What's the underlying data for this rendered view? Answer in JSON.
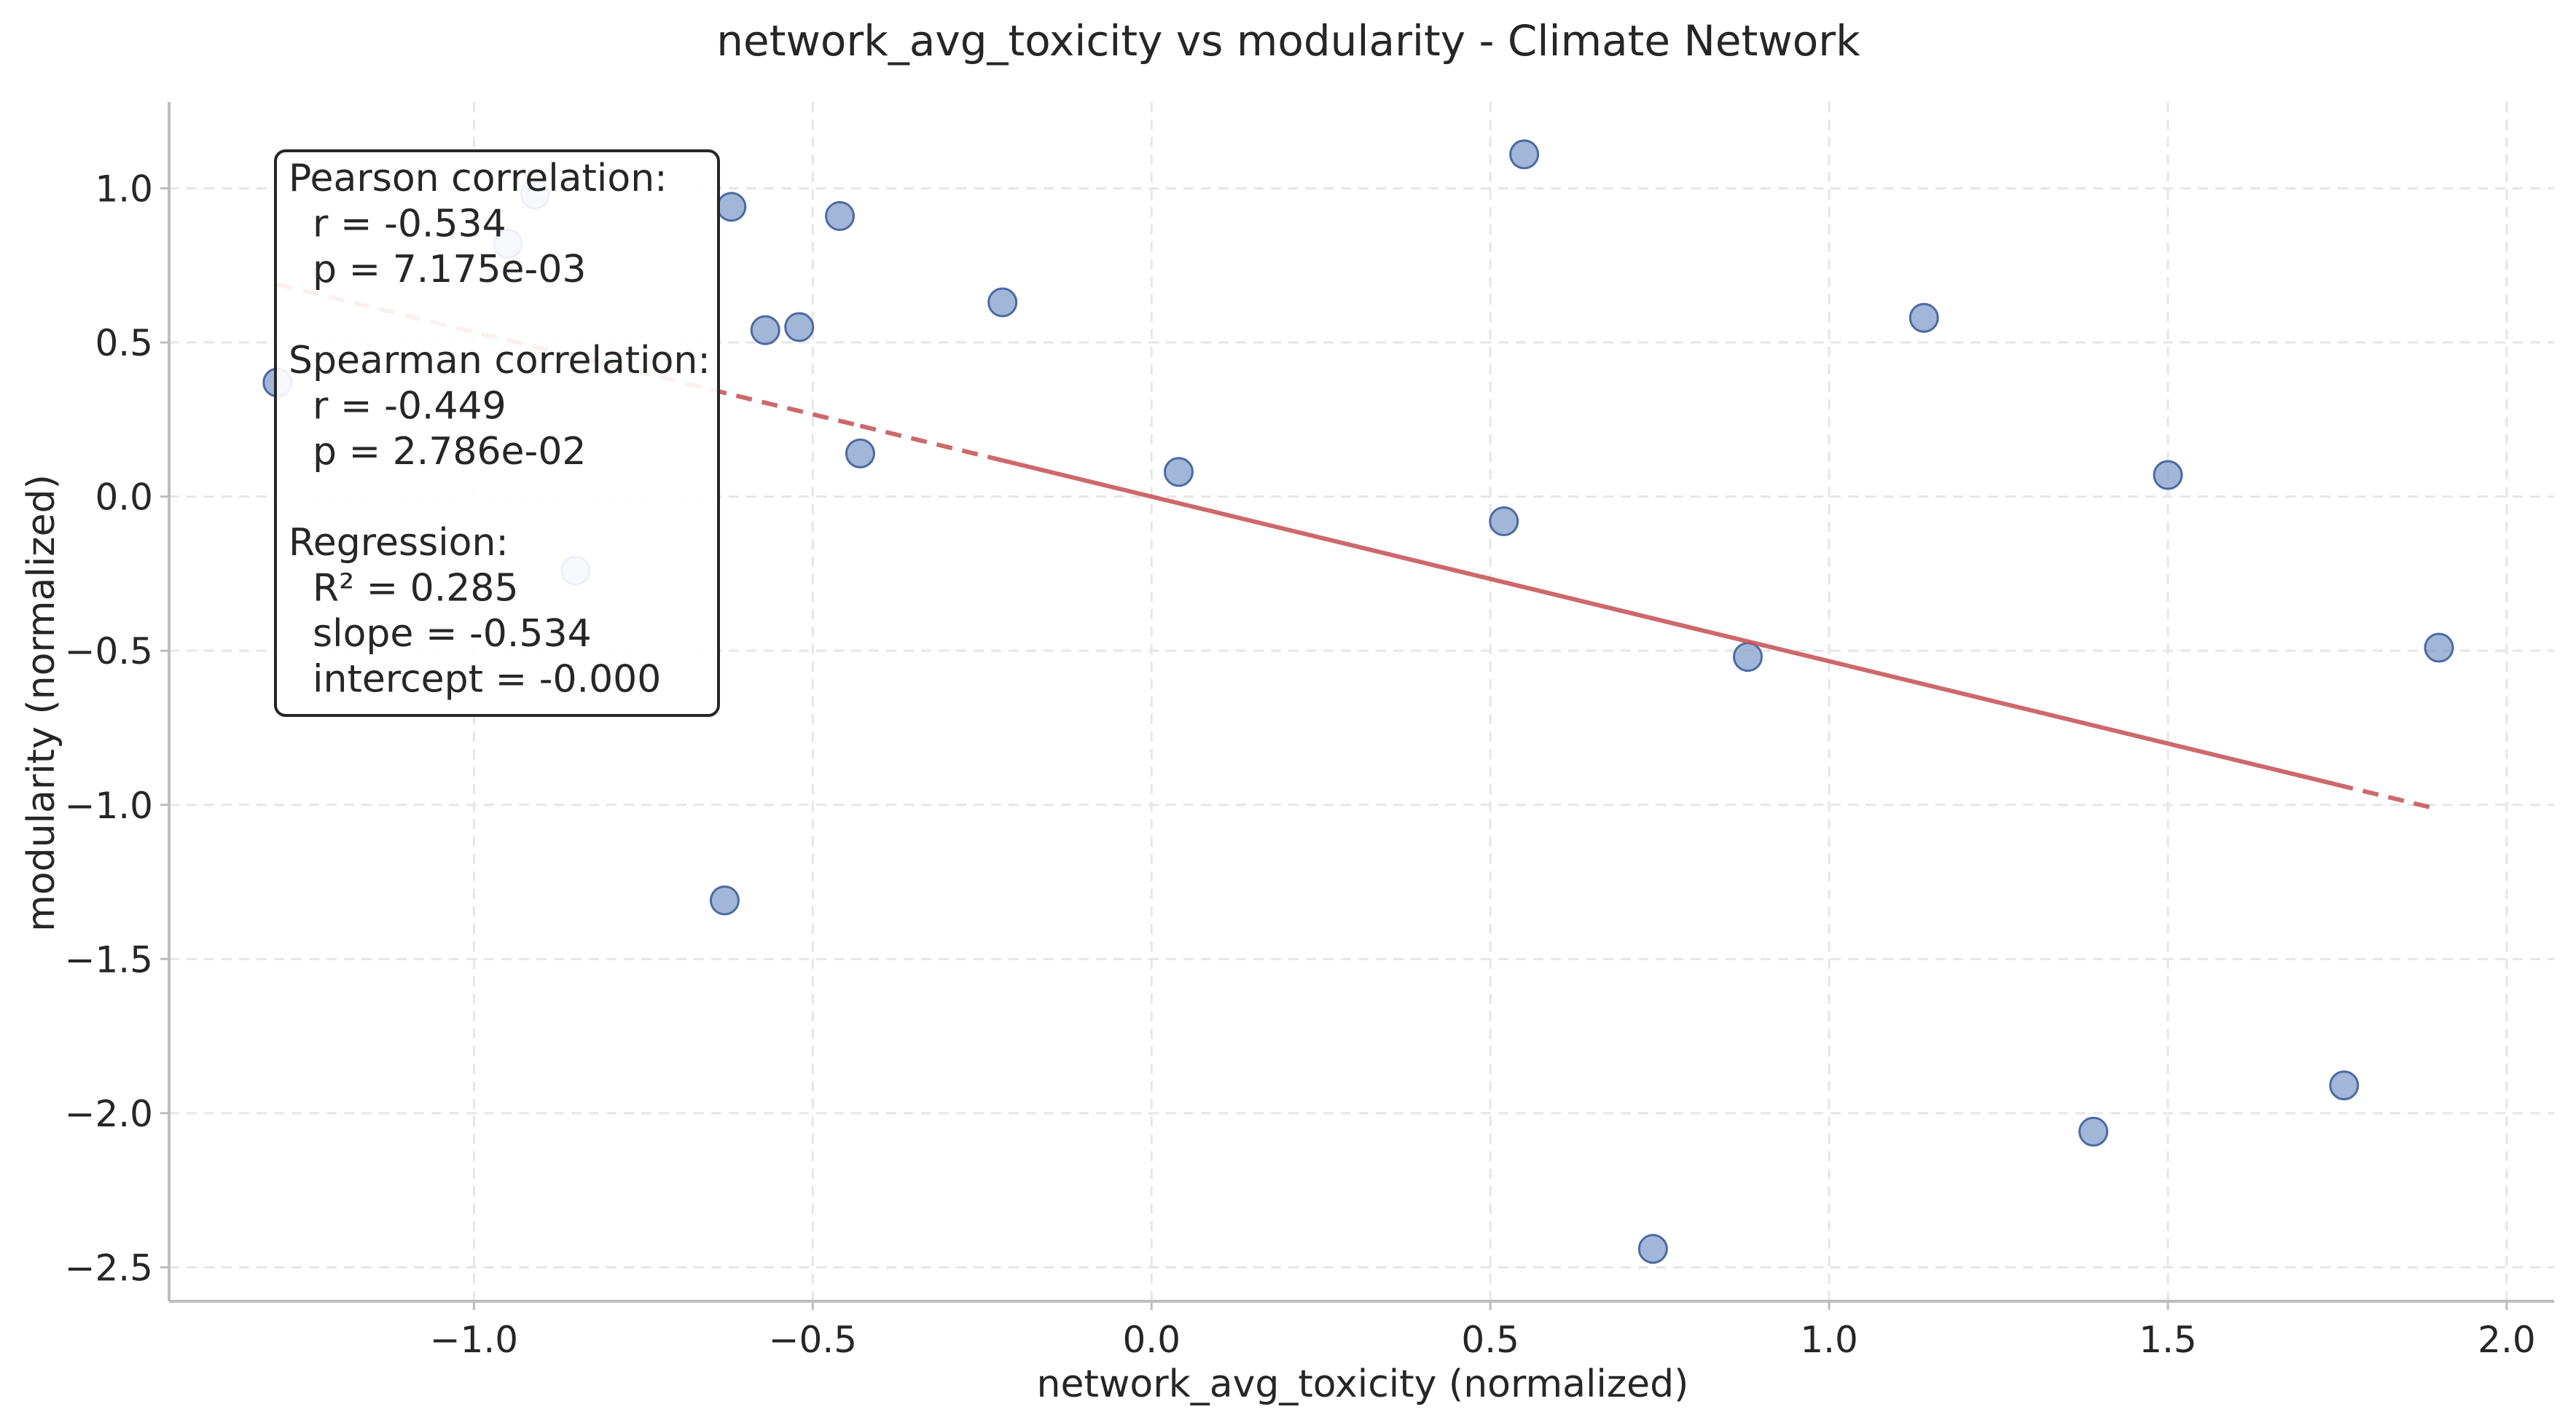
{
  "chart_data": {
    "type": "scatter",
    "title": "network_avg_toxicity vs modularity - Climate Network",
    "xlabel": "network_avg_toxicity (normalized)",
    "ylabel": "modularity (normalized)",
    "xlim": [
      -1.45,
      2.07
    ],
    "ylim": [
      -2.61,
      1.28
    ],
    "xticks": [
      -1.0,
      -0.5,
      0.0,
      0.5,
      1.0,
      1.5,
      2.0
    ],
    "yticks": [
      1.0,
      0.5,
      0.0,
      -0.5,
      -1.0,
      -1.5,
      -2.0,
      -2.5
    ],
    "xtick_labels": [
      "−1.0",
      "−0.5",
      "0.0",
      "0.5",
      "1.0",
      "1.5",
      "2.0"
    ],
    "ytick_labels": [
      "1.0",
      "0.5",
      "0.0",
      "−0.5",
      "−1.0",
      "−1.5",
      "−2.0",
      "−2.5"
    ],
    "grid": true,
    "points": [
      {
        "x": -1.29,
        "y": 0.37
      },
      {
        "x": -0.95,
        "y": 0.82
      },
      {
        "x": -0.91,
        "y": 0.98
      },
      {
        "x": -0.85,
        "y": -0.24
      },
      {
        "x": -0.62,
        "y": 0.94
      },
      {
        "x": -0.63,
        "y": -1.31
      },
      {
        "x": -0.57,
        "y": 0.54
      },
      {
        "x": -0.52,
        "y": 0.55
      },
      {
        "x": -0.46,
        "y": 0.91
      },
      {
        "x": -0.43,
        "y": 0.14
      },
      {
        "x": -0.22,
        "y": 0.63
      },
      {
        "x": 0.04,
        "y": 0.08
      },
      {
        "x": 0.52,
        "y": -0.08
      },
      {
        "x": 0.55,
        "y": 1.11
      },
      {
        "x": 0.74,
        "y": -2.44
      },
      {
        "x": 0.88,
        "y": -0.52
      },
      {
        "x": 1.14,
        "y": 0.58
      },
      {
        "x": 1.39,
        "y": -2.06
      },
      {
        "x": 1.5,
        "y": 0.07
      },
      {
        "x": 1.76,
        "y": -1.91
      },
      {
        "x": 1.9,
        "y": -0.49
      }
    ],
    "regression": {
      "slope": -0.534,
      "intercept": -0.0,
      "x_range": [
        -1.29,
        1.9
      ]
    },
    "stats_lines": [
      "Pearson correlation:",
      "  r = -0.534",
      "  p = 7.175e-03",
      "",
      "Spearman correlation:",
      "  r = -0.449",
      "  p = 2.786e-02",
      "",
      "Regression:",
      "  R² = 0.285",
      "  slope = -0.534",
      "  intercept = -0.000"
    ],
    "colors": {
      "points": "#7b97c6",
      "regression_line": "#c44e52"
    }
  }
}
